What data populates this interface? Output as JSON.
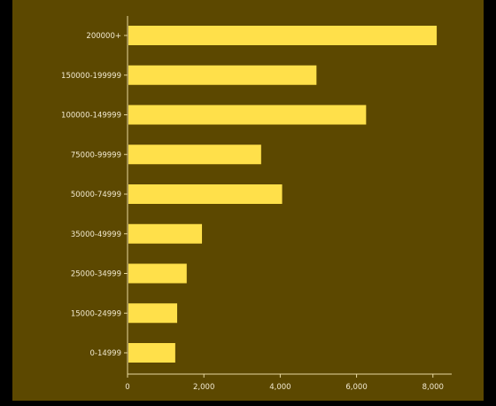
{
  "chart_data": {
    "type": "bar",
    "orientation": "horizontal",
    "categories": [
      "200000+",
      "150000-199999",
      "100000-149999",
      "75000-99999",
      "50000-74999",
      "35000-49999",
      "25000-34999",
      "15000-24999",
      "0-14999"
    ],
    "values": [
      8100,
      4950,
      6250,
      3500,
      4050,
      1950,
      1550,
      1300,
      1250
    ],
    "xlim": [
      0,
      8400
    ],
    "x_ticks": [
      {
        "value": 0,
        "label": "0"
      },
      {
        "value": 2000,
        "label": "2,000"
      },
      {
        "value": 4000,
        "label": "4,000"
      },
      {
        "value": 6000,
        "label": "6,000"
      },
      {
        "value": 8000,
        "label": "8,000"
      }
    ],
    "grid": false,
    "colors": {
      "background": "#000000",
      "panel": "#5c4800",
      "bar": "#ffe04a",
      "axis": "#e8d9a0",
      "text": "#f2ead0"
    }
  }
}
